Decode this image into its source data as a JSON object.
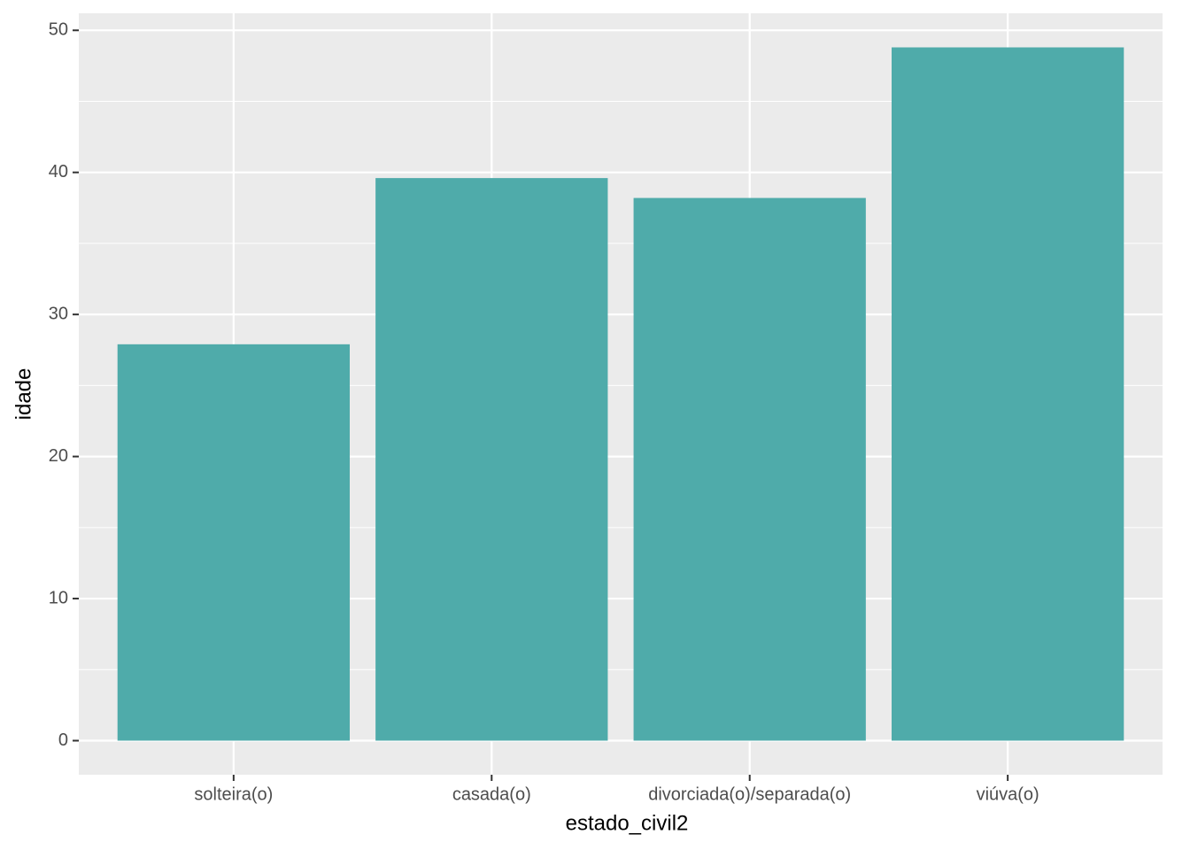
{
  "chart_data": {
    "type": "bar",
    "x_label": "estado_civil2",
    "y_label": "idade",
    "categories": [
      "solteira(o)",
      "casada(o)",
      "divorciada(o)/separada(o)",
      "viúva(o)"
    ],
    "values": [
      27.9,
      39.6,
      38.2,
      48.8
    ],
    "color": "#4fabaa",
    "ylim": [
      -2.4,
      51.2
    ],
    "yticks": [
      0,
      10,
      20,
      30,
      40,
      50
    ],
    "grid": true
  }
}
